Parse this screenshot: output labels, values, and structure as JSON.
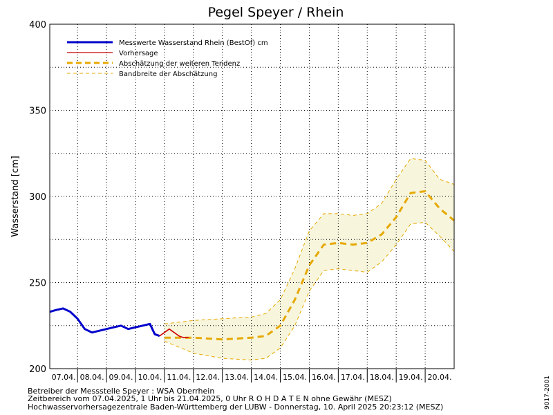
{
  "chart_data": {
    "type": "line",
    "title": "Pegel Speyer / Rhein",
    "ylabel": "Wasserstand [cm]",
    "xlabel": "",
    "ylim": [
      200,
      400
    ],
    "yticks": [
      200,
      250,
      300,
      350,
      400
    ],
    "grid": true,
    "legend_position": "top-left",
    "x_start": "07.04.2025 01:00",
    "x_end": "21.04.2025 00:00",
    "categories": [
      "07.04.",
      "08.04.",
      "09.04.",
      "10.04.",
      "11.04.",
      "12.04.",
      "13.04.",
      "14.04.",
      "15.04.",
      "16.04.",
      "17.04.",
      "18.04.",
      "19.04.",
      "20.04."
    ],
    "series": [
      {
        "name": "Messwerte Wasserstand Rhein (BestOf)  cm",
        "color": "#0000cc",
        "style": "solid-thick",
        "x": [
          "07.04.2025 01:00",
          "07.04.2025 06:00",
          "07.04.2025 12:00",
          "07.04.2025 18:00",
          "08.04.2025 00:00",
          "08.04.2025 06:00",
          "08.04.2025 12:00",
          "08.04.2025 18:00",
          "09.04.2025 00:00",
          "09.04.2025 06:00",
          "09.04.2025 12:00",
          "09.04.2025 18:00",
          "10.04.2025 00:00",
          "10.04.2025 06:00",
          "10.04.2025 12:00",
          "10.04.2025 16:00",
          "10.04.2025 20:00"
        ],
        "values": [
          233,
          234,
          235,
          233,
          229,
          223,
          221,
          222,
          223,
          224,
          225,
          223,
          224,
          225,
          226,
          220,
          219
        ]
      },
      {
        "name": "Vorhersage",
        "color": "#cc0000",
        "style": "solid",
        "x": [
          "10.04.2025 20:00",
          "11.04.2025 00:00",
          "11.04.2025 04:00",
          "11.04.2025 08:00",
          "11.04.2025 12:00",
          "11.04.2025 16:00",
          "11.04.2025 20:00"
        ],
        "values": [
          219,
          221,
          223,
          221,
          219,
          218,
          218
        ]
      },
      {
        "name": "Abschätzung der weiteren Tendenz",
        "color": "#e6a800",
        "style": "dashed-thick",
        "x": [
          "11.04.2025 00:00",
          "12.04.2025 00:00",
          "13.04.2025 00:00",
          "14.04.2025 00:00",
          "14.04.2025 12:00",
          "15.04.2025 00:00",
          "15.04.2025 12:00",
          "16.04.2025 00:00",
          "16.04.2025 12:00",
          "17.04.2025 00:00",
          "17.04.2025 12:00",
          "18.04.2025 00:00",
          "18.04.2025 12:00",
          "19.04.2025 00:00",
          "19.04.2025 12:00",
          "20.04.2025 00:00",
          "20.04.2025 12:00",
          "21.04.2025 00:00"
        ],
        "values": [
          218,
          218,
          217,
          218,
          219,
          225,
          240,
          260,
          272,
          273,
          272,
          273,
          278,
          288,
          302,
          303,
          293,
          286
        ]
      },
      {
        "name": "Bandbreite der Abschätzung",
        "color": "#e6a800",
        "style": "dashed-thin",
        "x": [
          "11.04.2025 00:00",
          "12.04.2025 00:00",
          "13.04.2025 00:00",
          "14.04.2025 00:00",
          "14.04.2025 12:00",
          "15.04.2025 00:00",
          "15.04.2025 12:00",
          "16.04.2025 00:00",
          "16.04.2025 12:00",
          "17.04.2025 00:00",
          "17.04.2025 12:00",
          "18.04.2025 00:00",
          "18.04.2025 12:00",
          "19.04.2025 00:00",
          "19.04.2025 12:00",
          "20.04.2025 00:00",
          "20.04.2025 12:00",
          "21.04.2025 00:00"
        ],
        "upper": [
          226,
          228,
          229,
          230,
          232,
          240,
          258,
          280,
          290,
          290,
          289,
          290,
          296,
          310,
          322,
          321,
          310,
          307
        ],
        "lower": [
          216,
          209,
          206,
          205,
          206,
          212,
          225,
          245,
          257,
          258,
          257,
          256,
          262,
          272,
          284,
          285,
          277,
          268
        ]
      }
    ]
  },
  "footer": {
    "line1": "Betreiber der Messstelle Speyer : WSA Oberrhein",
    "line2": "Zeitbereich vom 07.04.2025, 1 Uhr bis 21.04.2025, 0 Uhr   R O H D A T E N ohne Gewähr (MESZ)",
    "line3": "Hochwasservorhersagezentrale Baden-Württemberg der LUBW - Donnerstag, 10. April 2025 20:23:12 (MESZ)"
  },
  "side_code": "9017-2001",
  "colors": {
    "measured": "#0000cc",
    "forecast": "#cc0000",
    "trend": "#e6a800",
    "band_fill": "#f7f5dc"
  }
}
